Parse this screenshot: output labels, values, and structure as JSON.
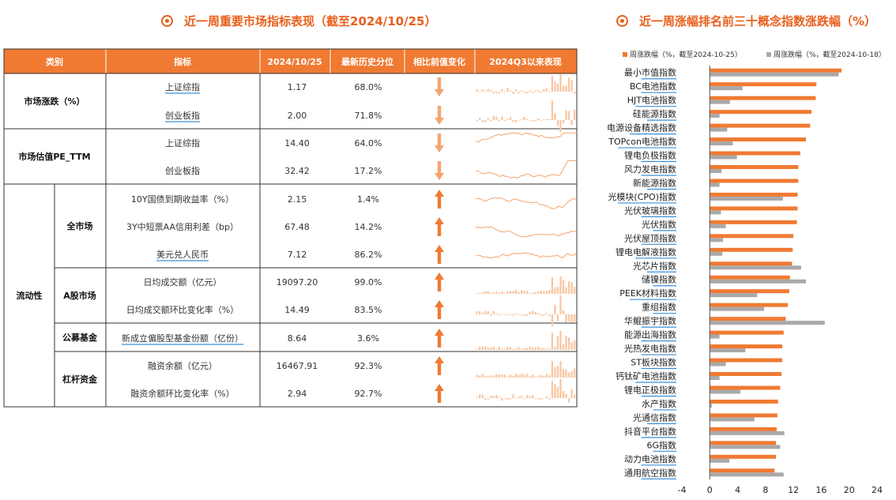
{
  "left_title": "近一周重要市场指标表现（截至2024/10/25）",
  "right_title": "近一周涨幅排名前三十概念指数涨跌幅（%）",
  "table": {
    "headers": [
      "类别",
      "指标",
      "2024/10/25",
      "最新历史分位",
      "相比前值变化",
      "2024Q3以来表现"
    ],
    "groups": [
      {
        "label": "市场涨跌（%）"
      },
      {
        "label": "市场估值PE_TTM"
      },
      {
        "label": "流动性"
      }
    ],
    "subgroups": [
      {
        "label": "全市场"
      },
      {
        "label": "A股市场"
      },
      {
        "label": "公募基金"
      },
      {
        "label": "杠杆资金"
      }
    ],
    "rows": [
      {
        "indicator": "上证综指",
        "value": "1.17",
        "pct": "68.0%",
        "change": "down"
      },
      {
        "indicator": "创业板指",
        "value": "2.00",
        "pct": "71.8%",
        "change": "down"
      },
      {
        "indicator": "上证综指",
        "value": "14.40",
        "pct": "64.0%",
        "change": "down"
      },
      {
        "indicator": "创业板指",
        "value": "32.42",
        "pct": "17.2%",
        "change": "down"
      },
      {
        "indicator": "10Y国债到期收益率（%）",
        "value": "2.15",
        "pct": "1.4%",
        "change": "up"
      },
      {
        "indicator": "3Y中短票AA信用利差（bp）",
        "value": "67.48",
        "pct": "14.2%",
        "change": "up"
      },
      {
        "indicator": "美元兑人民币",
        "value": "7.12",
        "pct": "86.2%",
        "change": "up"
      },
      {
        "indicator": "日均成交额（亿元）",
        "value": "19097.20",
        "pct": "99.0%",
        "change": "up"
      },
      {
        "indicator": "日均成交额环比变化率（%）",
        "value": "14.49",
        "pct": "83.5%",
        "change": "up"
      },
      {
        "indicator": "新成立偏股型基金份额（亿份）",
        "value": "8.64",
        "pct": "3.6%",
        "change": "up"
      },
      {
        "indicator": "融资余额（亿元）",
        "value": "16467.91",
        "pct": "92.3%",
        "change": "up"
      },
      {
        "indicator": "融资余额环比变化率（%）",
        "value": "2.94",
        "pct": "92.7%",
        "change": "up"
      }
    ]
  },
  "chart_data": {
    "type": "bar",
    "orientation": "horizontal",
    "categories": [
      "最小市值指数",
      "BC电池指数",
      "HJT电池指数",
      "硅能源指数",
      "电源设备精选指数",
      "TOPcon电池指数",
      "锂电负极指数",
      "风力发电指数",
      "新能源指数",
      "光模块(CPO)指数",
      "光伏玻璃指数",
      "光伏指数",
      "光伏屋顶指数",
      "锂电电解液指数",
      "光芯片指数",
      "储镍指数",
      "PEEK材料指数",
      "重组指数",
      "华鲲振宇指数",
      "能源出海指数",
      "光热发电指数",
      "ST板块指数",
      "钙钛矿电池指数",
      "锂电正极指数",
      "水产指数",
      "光通信指数",
      "抖音平台指数",
      "6G指数",
      "动力电池指数",
      "通用航空指数"
    ],
    "series": [
      {
        "name": "周涨跌幅（%，截至2024-10-25）",
        "color": "#f07a32",
        "values": [
          18.9,
          15.3,
          15.2,
          14.6,
          14.4,
          13.8,
          13.0,
          12.7,
          12.7,
          12.6,
          12.6,
          12.5,
          12.0,
          11.9,
          11.8,
          11.5,
          11.4,
          11.2,
          10.9,
          10.6,
          10.4,
          10.4,
          10.3,
          10.1,
          9.8,
          9.7,
          9.6,
          9.5,
          9.5,
          9.3
        ]
      },
      {
        "name": "周涨跌幅（%，截至2024-10-18）",
        "color": "#a9a9a9",
        "values": [
          18.5,
          4.7,
          2.9,
          1.4,
          2.5,
          3.3,
          3.9,
          1.7,
          1.4,
          10.5,
          1.6,
          2.3,
          1.9,
          1.8,
          13.1,
          13.8,
          6.8,
          7.8,
          16.5,
          1.4,
          5.1,
          2.3,
          1.4,
          4.4,
          0.3,
          6.4,
          10.7,
          10.1,
          2.8,
          10.6
        ]
      }
    ],
    "xlim": [
      -4,
      24
    ],
    "xticks": [
      -4,
      0,
      4,
      8,
      12,
      16,
      20,
      24
    ],
    "legend": "top"
  }
}
